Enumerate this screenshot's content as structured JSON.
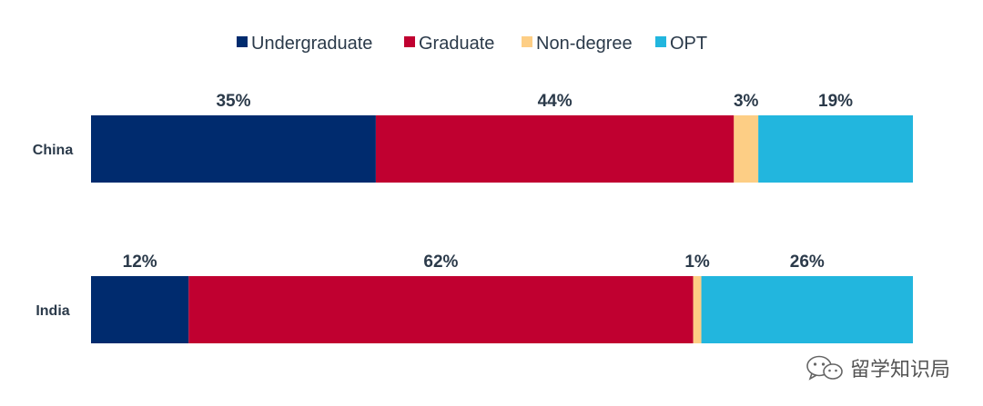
{
  "chart_data": {
    "type": "bar",
    "orientation": "horizontal",
    "stacked": true,
    "percent": true,
    "categories": [
      "China",
      "India"
    ],
    "series": [
      {
        "name": "Undergraduate",
        "values": [
          35,
          12
        ],
        "color": "#002b6e"
      },
      {
        "name": "Graduate",
        "values": [
          44,
          62
        ],
        "color": "#c00030"
      },
      {
        "name": "Non-degree",
        "values": [
          3,
          1
        ],
        "color": "#fdce85"
      },
      {
        "name": "OPT",
        "values": [
          19,
          26
        ],
        "color": "#22b6de"
      }
    ],
    "data_labels": [
      [
        "35%",
        "44%",
        "3%",
        "19%"
      ],
      [
        "12%",
        "62%",
        "1%",
        "26%"
      ]
    ],
    "legend_position": "top-center",
    "grid": false
  },
  "watermark": {
    "icon": "wechat-icon",
    "text": "留学知识局"
  }
}
